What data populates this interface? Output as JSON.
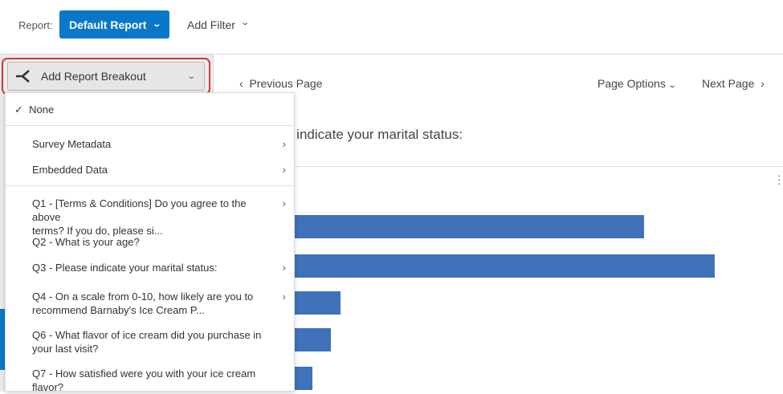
{
  "topbar": {
    "report_label": "Report:",
    "report_value": "Default Report",
    "add_filter": "Add Filter"
  },
  "breakout": {
    "label": "Add Report Breakout"
  },
  "nav": {
    "previous": "Previous Page",
    "page_options": "Page Options",
    "next": "Next Page"
  },
  "question_title": "e indicate your marital status:",
  "menu": {
    "none": "None",
    "survey_metadata": "Survey Metadata",
    "embedded_data": "Embedded Data",
    "items": [
      {
        "l1": "Q1 - [Terms & Conditions] Do you agree to the above",
        "l2": "terms? If you do, please si...",
        "submenu": true
      },
      {
        "l1": "Q2 - What is your age?",
        "l2": "",
        "submenu": false
      },
      {
        "l1": "Q3 - Please indicate your marital status:",
        "l2": "",
        "submenu": true
      },
      {
        "l1": "Q4 - On a scale from 0-10, how likely are you to",
        "l2": "recommend Barnaby's Ice Cream P...",
        "submenu": true
      },
      {
        "l1": "Q6 - What flavor of ice cream did you purchase in",
        "l2": "your last visit?",
        "submenu": false
      },
      {
        "l1": "Q7 - How satisfied were you with your ice cream",
        "l2": "flavor?",
        "submenu": false
      }
    ]
  },
  "bars": {
    "color": "#3f72b8",
    "relative_values": [
      0.85,
      1.0,
      0.21,
      0.19,
      0.15
    ]
  },
  "colors": {
    "accent": "#0a78c8",
    "highlight": "#d0383f"
  }
}
